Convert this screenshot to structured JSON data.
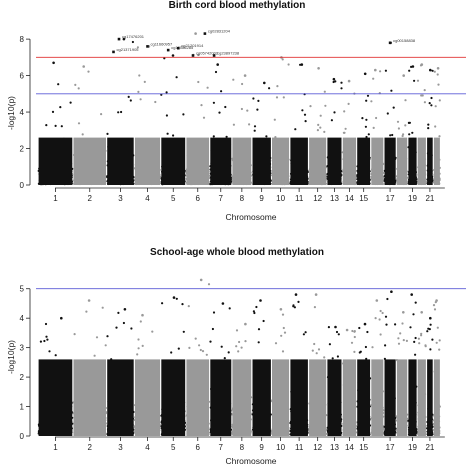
{
  "chart_data": [
    {
      "type": "scatter",
      "title": "Birth cord blood methylation",
      "xlabel": "Chromosome",
      "ylabel": "-log10(p)",
      "ylim": [
        0,
        8.5
      ],
      "yticks": [
        0,
        2,
        4,
        6,
        8
      ],
      "x_ticks": [
        "1",
        "2",
        "3",
        "4",
        "5",
        "6",
        "7",
        "8",
        "9",
        "10",
        "11",
        "12",
        "13",
        "14",
        "15",
        "17",
        "19",
        "21"
      ],
      "thresholds": [
        {
          "value": 7.0,
          "color": "#e03030"
        },
        {
          "value": 5.0,
          "color": "#5a5ad6"
        }
      ],
      "colors": [
        "#111111",
        "#999999"
      ],
      "chromosomes": [
        {
          "chr": "1",
          "start": 0.0,
          "width": 0.082,
          "peak": 6.7
        },
        {
          "chr": "2",
          "start": 0.082,
          "width": 0.079,
          "peak": 6.5
        },
        {
          "chr": "3",
          "start": 0.161,
          "width": 0.065,
          "peak": 8.0
        },
        {
          "chr": "4",
          "start": 0.226,
          "width": 0.062,
          "peak": 7.6
        },
        {
          "chr": "5",
          "start": 0.288,
          "width": 0.059,
          "peak": 7.1
        },
        {
          "chr": "6",
          "start": 0.347,
          "width": 0.056,
          "peak": 8.3
        },
        {
          "chr": "7",
          "start": 0.403,
          "width": 0.052,
          "peak": 6.6
        },
        {
          "chr": "8",
          "start": 0.455,
          "width": 0.047,
          "peak": 6.0
        },
        {
          "chr": "9",
          "start": 0.502,
          "width": 0.046,
          "peak": 5.6
        },
        {
          "chr": "10",
          "start": 0.548,
          "width": 0.043,
          "peak": 7.0
        },
        {
          "chr": "11",
          "start": 0.591,
          "width": 0.044,
          "peak": 6.6
        },
        {
          "chr": "12",
          "start": 0.635,
          "width": 0.043,
          "peak": 6.4
        },
        {
          "chr": "13",
          "start": 0.678,
          "width": 0.036,
          "peak": 5.8
        },
        {
          "chr": "14",
          "start": 0.714,
          "width": 0.034,
          "peak": 5.7
        },
        {
          "chr": "15",
          "start": 0.748,
          "width": 0.033,
          "peak": 6.1
        },
        {
          "chr": "16",
          "start": 0.781,
          "width": 0.031,
          "peak": 6.3
        },
        {
          "chr": "17",
          "start": 0.812,
          "width": 0.029,
          "peak": 7.8
        },
        {
          "chr": "18",
          "start": 0.841,
          "width": 0.027,
          "peak": 6.0
        },
        {
          "chr": "19",
          "start": 0.868,
          "width": 0.022,
          "peak": 6.5
        },
        {
          "chr": "20",
          "start": 0.89,
          "width": 0.022,
          "peak": 6.6
        },
        {
          "chr": "21",
          "start": 0.912,
          "width": 0.016,
          "peak": 6.3
        },
        {
          "chr": "22",
          "start": 0.928,
          "width": 0.017,
          "peak": 6.4
        }
      ],
      "annotations": [
        {
          "label": "cg17476201",
          "chr": "3",
          "pos": 0.45,
          "y": 8.0
        },
        {
          "label": "cg21371905",
          "chr": "3",
          "pos": 0.25,
          "y": 7.3
        },
        {
          "label": "cg11660957",
          "chr": "4",
          "pos": 0.5,
          "y": 7.6
        },
        {
          "label": "cg18086285",
          "chr": "5",
          "pos": 0.3,
          "y": 7.4
        },
        {
          "label": "cg21201914",
          "chr": "5",
          "pos": 0.7,
          "y": 7.5
        },
        {
          "label": "cg05742002",
          "chr": "6",
          "pos": 0.3,
          "y": 7.1
        },
        {
          "label": "cg02831204",
          "chr": "6",
          "pos": 0.8,
          "y": 8.3
        },
        {
          "label": "cg23897238",
          "chr": "7",
          "pos": 0.2,
          "y": 7.1
        },
        {
          "label": "cg00158838",
          "chr": "17",
          "pos": 0.5,
          "y": 7.8
        }
      ]
    },
    {
      "type": "scatter",
      "title": "School-age whole blood methylation",
      "xlabel": "Chromosome",
      "ylabel": "-log10(p)",
      "ylim": [
        0,
        5.5
      ],
      "yticks": [
        0,
        1,
        2,
        3,
        4,
        5
      ],
      "x_ticks": [
        "1",
        "2",
        "3",
        "4",
        "5",
        "6",
        "7",
        "8",
        "9",
        "10",
        "11",
        "12",
        "13",
        "14",
        "15",
        "17",
        "19",
        "21"
      ],
      "thresholds": [
        {
          "value": 5.0,
          "color": "#5a5ad6"
        }
      ],
      "colors": [
        "#111111",
        "#999999"
      ],
      "chromosomes": [
        {
          "chr": "1",
          "start": 0.0,
          "width": 0.082,
          "peak": 4.0
        },
        {
          "chr": "2",
          "start": 0.082,
          "width": 0.079,
          "peak": 4.6
        },
        {
          "chr": "3",
          "start": 0.161,
          "width": 0.065,
          "peak": 4.3
        },
        {
          "chr": "4",
          "start": 0.226,
          "width": 0.062,
          "peak": 4.1
        },
        {
          "chr": "5",
          "start": 0.288,
          "width": 0.059,
          "peak": 4.7
        },
        {
          "chr": "6",
          "start": 0.347,
          "width": 0.056,
          "peak": 5.3
        },
        {
          "chr": "7",
          "start": 0.403,
          "width": 0.052,
          "peak": 4.5
        },
        {
          "chr": "8",
          "start": 0.455,
          "width": 0.047,
          "peak": 3.8
        },
        {
          "chr": "9",
          "start": 0.502,
          "width": 0.046,
          "peak": 4.6
        },
        {
          "chr": "10",
          "start": 0.548,
          "width": 0.043,
          "peak": 4.3
        },
        {
          "chr": "11",
          "start": 0.591,
          "width": 0.044,
          "peak": 4.8
        },
        {
          "chr": "12",
          "start": 0.635,
          "width": 0.043,
          "peak": 4.8
        },
        {
          "chr": "13",
          "start": 0.678,
          "width": 0.036,
          "peak": 3.7
        },
        {
          "chr": "14",
          "start": 0.714,
          "width": 0.034,
          "peak": 3.6
        },
        {
          "chr": "15",
          "start": 0.748,
          "width": 0.033,
          "peak": 3.8
        },
        {
          "chr": "16",
          "start": 0.781,
          "width": 0.031,
          "peak": 4.6
        },
        {
          "chr": "17",
          "start": 0.812,
          "width": 0.029,
          "peak": 4.9
        },
        {
          "chr": "18",
          "start": 0.841,
          "width": 0.027,
          "peak": 4.2
        },
        {
          "chr": "19",
          "start": 0.868,
          "width": 0.022,
          "peak": 4.8
        },
        {
          "chr": "20",
          "start": 0.89,
          "width": 0.022,
          "peak": 4.2
        },
        {
          "chr": "21",
          "start": 0.912,
          "width": 0.016,
          "peak": 4.0
        },
        {
          "chr": "22",
          "start": 0.928,
          "width": 0.017,
          "peak": 4.6
        }
      ],
      "annotations": []
    }
  ]
}
